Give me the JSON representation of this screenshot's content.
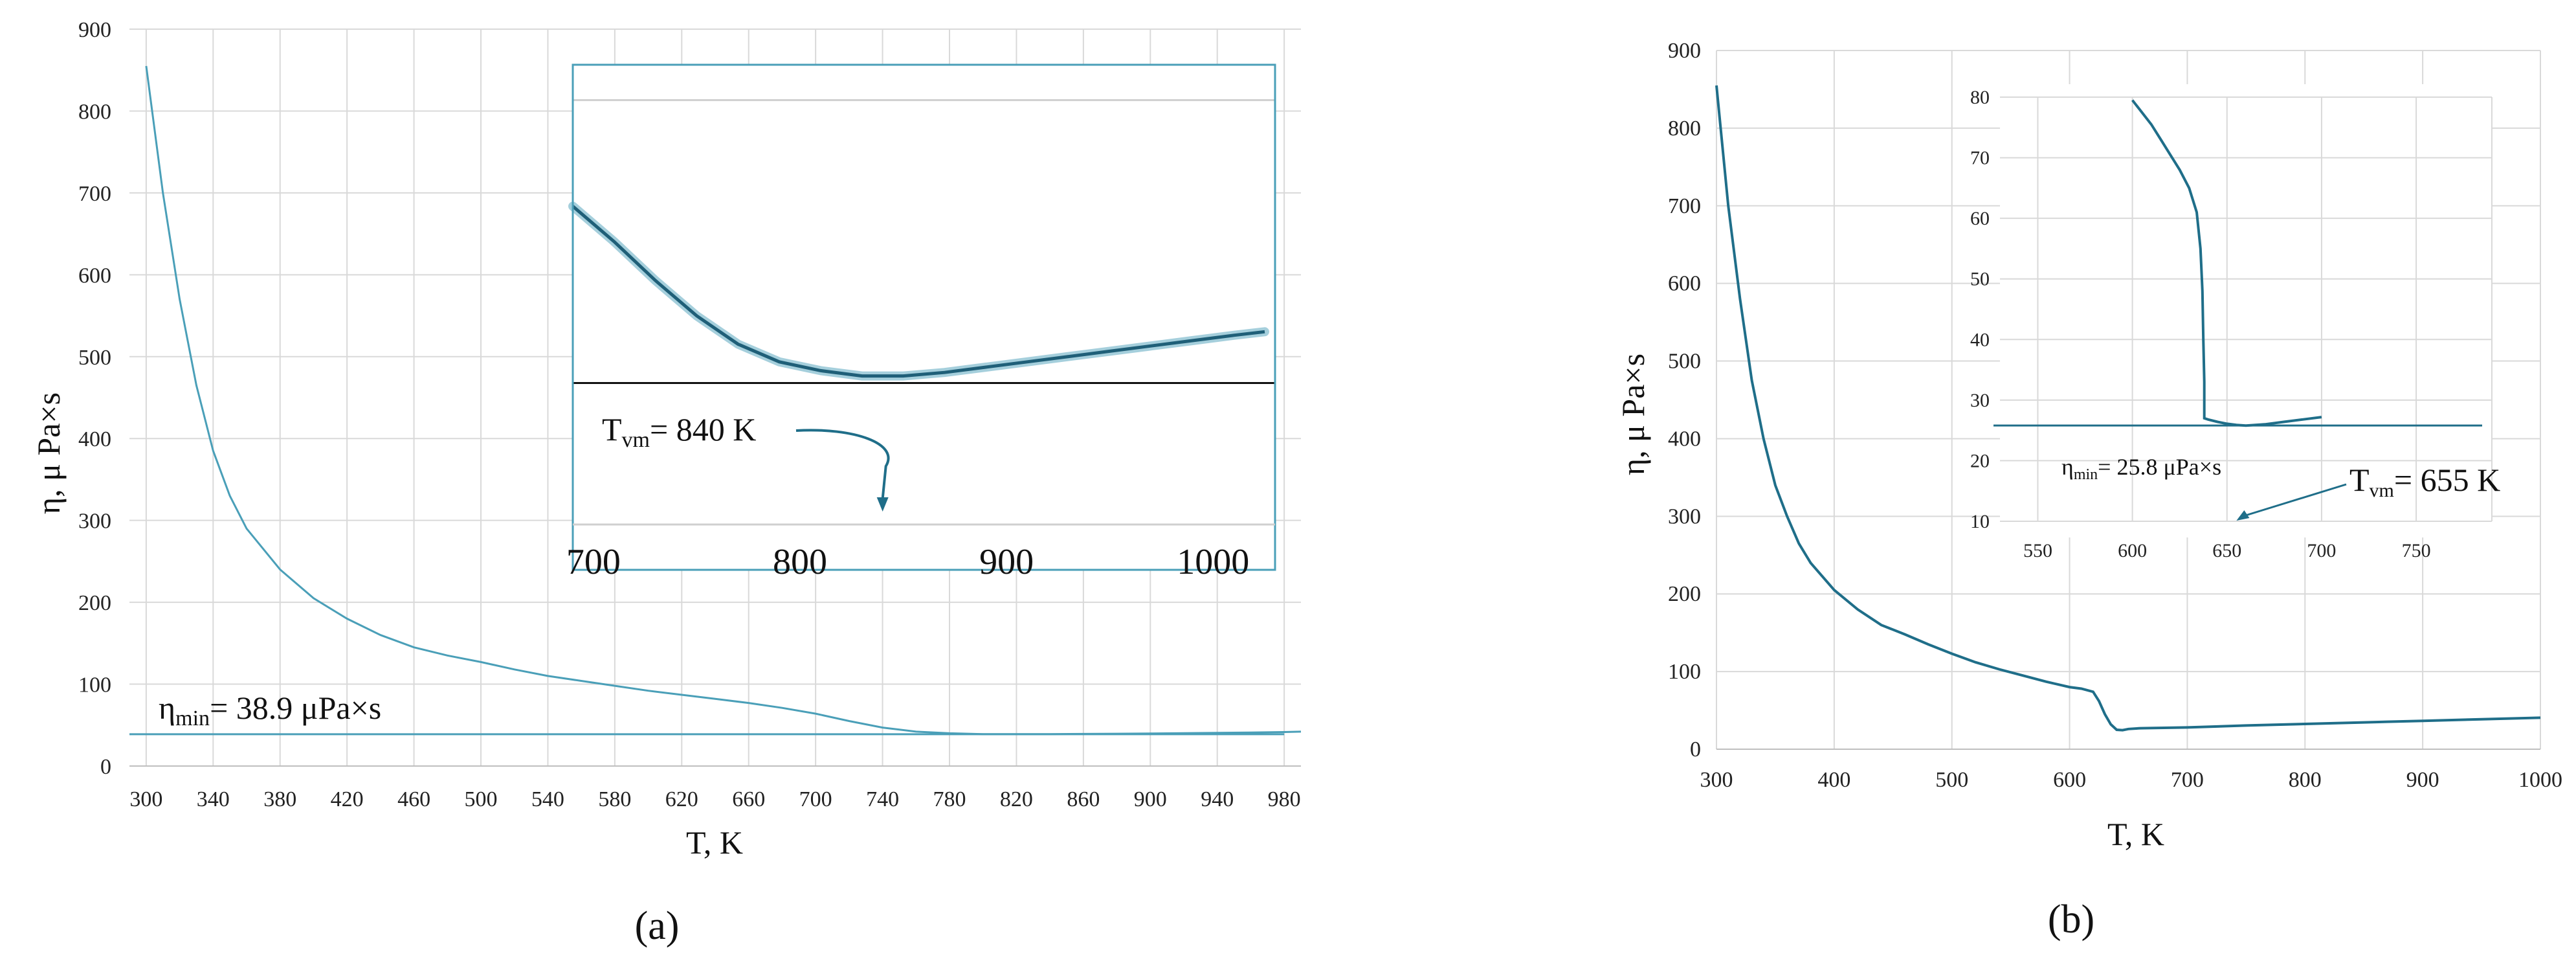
{
  "chart_data": [
    {
      "id": "a",
      "type": "line",
      "panel_label": "(a)",
      "xlabel": "T, K",
      "ylabel": "η, μ Pa×s",
      "xlim": [
        290,
        990
      ],
      "ylim": [
        0,
        900
      ],
      "x_ticks": [
        300,
        340,
        380,
        420,
        460,
        500,
        540,
        580,
        620,
        660,
        700,
        740,
        780,
        820,
        860,
        900,
        940,
        980
      ],
      "y_ticks": [
        0,
        100,
        200,
        300,
        400,
        500,
        600,
        700,
        800,
        900
      ],
      "grid": true,
      "line_color": "#4a9fb8",
      "series": [
        {
          "x": [
            300,
            310,
            320,
            330,
            340,
            350,
            360,
            380,
            400,
            420,
            440,
            460,
            480,
            500,
            520,
            540,
            560,
            580,
            600,
            620,
            640,
            660,
            680,
            700,
            720,
            740,
            760,
            780,
            800,
            820,
            840,
            860,
            880,
            900,
            920,
            940,
            960,
            980,
            990
          ],
          "y": [
            855,
            700,
            570,
            465,
            385,
            330,
            290,
            240,
            205,
            180,
            160,
            145,
            135,
            127,
            118,
            110,
            104,
            98,
            92,
            87,
            82,
            77,
            71,
            64,
            55,
            47,
            42,
            40,
            39,
            38.9,
            39,
            39.2,
            39.5,
            39.8,
            40.2,
            40.6,
            41,
            41.5,
            42
          ]
        }
      ],
      "hline": {
        "y": 38.9,
        "x_start": 290,
        "x_end": 980
      },
      "annotation": {
        "main": "η",
        "sub": "min",
        "rest": "= 38.9 μPa×s"
      },
      "inset": {
        "xlim": [
          690,
          1030
        ],
        "ylim": [
          35,
          48
        ],
        "x_ticks": [
          700,
          800,
          900,
          1000
        ],
        "hline_y": 39,
        "top_line_y": 47,
        "series": {
          "x": [
            690,
            710,
            730,
            750,
            770,
            790,
            810,
            830,
            850,
            870,
            890,
            910,
            930,
            950,
            970,
            990,
            1010,
            1025
          ],
          "y": [
            44.0,
            43.0,
            41.9,
            40.9,
            40.1,
            39.6,
            39.35,
            39.2,
            39.2,
            39.3,
            39.45,
            39.6,
            39.75,
            39.9,
            40.05,
            40.2,
            40.35,
            40.45
          ]
        },
        "annotation": {
          "main": "T",
          "sub": "vm",
          "rest": "= 840 K"
        },
        "arrow_target_x": 840
      }
    },
    {
      "id": "b",
      "type": "line",
      "panel_label": "(b)",
      "xlabel": "T, K",
      "ylabel": "η, μ Pa×s",
      "xlim": [
        300,
        1000
      ],
      "ylim": [
        0,
        900
      ],
      "x_ticks": [
        300,
        400,
        500,
        600,
        700,
        800,
        900,
        1000
      ],
      "y_ticks": [
        0,
        100,
        200,
        300,
        400,
        500,
        600,
        700,
        800,
        900
      ],
      "grid": true,
      "line_color": "#1f6e89",
      "series": [
        {
          "x": [
            300,
            310,
            320,
            330,
            340,
            350,
            360,
            370,
            380,
            400,
            420,
            440,
            460,
            480,
            500,
            520,
            540,
            560,
            580,
            600,
            610,
            620,
            625,
            630,
            635,
            640,
            645,
            650,
            660,
            680,
            700,
            750,
            800,
            850,
            900,
            950,
            1000
          ],
          "y": [
            855,
            700,
            580,
            475,
            400,
            340,
            300,
            265,
            240,
            205,
            180,
            160,
            148,
            135,
            123,
            112,
            103,
            95,
            87,
            80,
            78,
            74,
            62,
            45,
            32,
            25,
            24.5,
            26,
            27,
            27.5,
            28,
            30.5,
            32.5,
            34.5,
            36.5,
            38.5,
            40.5
          ]
        }
      ],
      "inset": {
        "xlim": [
          530,
          790
        ],
        "ylim": [
          10,
          80
        ],
        "x_ticks": [
          550,
          600,
          650,
          700,
          750
        ],
        "y_ticks": [
          10,
          20,
          30,
          40,
          50,
          60,
          70,
          80
        ],
        "hline_y": 25.8,
        "series": {
          "x": [
            600,
            605,
            610,
            615,
            620,
            625,
            630,
            634,
            636,
            637,
            637.5,
            638,
            638,
            640,
            645,
            650,
            655,
            660,
            665,
            670,
            680,
            690,
            700
          ],
          "y": [
            79.5,
            77.5,
            75.5,
            73,
            70.5,
            68,
            65,
            61,
            55,
            48,
            40,
            33,
            27,
            26.8,
            26.4,
            26.1,
            25.9,
            25.8,
            25.9,
            26.0,
            26.4,
            26.8,
            27.2
          ]
        },
        "annotation_eta": {
          "main": "η",
          "sub": "min",
          "rest": "= 25.8 μPa×s"
        },
        "annotation_t": {
          "main": "T",
          "sub": "vm",
          "rest": "= 655 K"
        },
        "arrow_target_x": 655
      }
    }
  ]
}
